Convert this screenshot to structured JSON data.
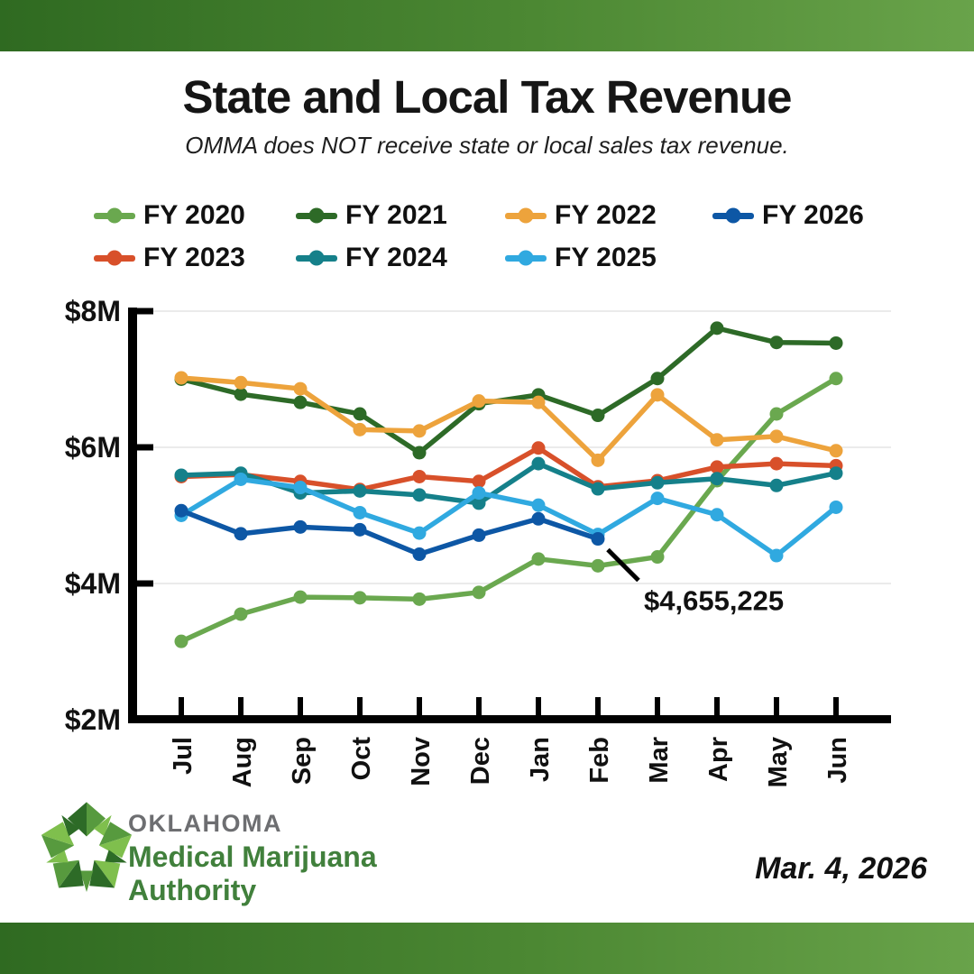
{
  "header": {
    "title": "State and Local Tax Revenue",
    "subtitle": "OMMA does NOT receive state or local sales tax revenue."
  },
  "footer": {
    "org_line1": "OKLAHOMA",
    "org_line2": "Medical Marijuana",
    "org_line3": "Authority",
    "date": "Mar. 4, 2026"
  },
  "colors": {
    "banner_gradient_from": "#2f6a21",
    "banner_gradient_to": "#69a34a",
    "grid_line": "#ebebeb",
    "axis": "#000000",
    "org_gray": "#6d6e71",
    "org_green": "#41803c",
    "logo_greens": [
      "#2d6b27",
      "#579a3e",
      "#7fbf4d"
    ]
  },
  "chart_data": {
    "type": "line",
    "title": "State and Local Tax Revenue",
    "xlabel": "",
    "ylabel": "",
    "unit": "USD millions",
    "categories": [
      "Jul",
      "Aug",
      "Sep",
      "Oct",
      "Nov",
      "Dec",
      "Jan",
      "Feb",
      "Mar",
      "Apr",
      "May",
      "Jun"
    ],
    "y_axis": {
      "tick_labels": [
        "$8M",
        "$6M",
        "$4M",
        "$2M"
      ],
      "tick_values": [
        8,
        6,
        4,
        2
      ],
      "ylim": [
        2,
        8
      ]
    },
    "grid": "horizontal",
    "legend": {
      "position": "top",
      "order": [
        "FY 2020",
        "FY 2021",
        "FY 2022",
        "FY 2026",
        "FY 2023",
        "FY 2024",
        "FY 2025"
      ]
    },
    "series": [
      {
        "name": "FY 2020",
        "color": "#6aa84f",
        "values": [
          3.15,
          3.55,
          3.8,
          3.79,
          3.77,
          3.87,
          4.36,
          4.26,
          4.39,
          5.51,
          6.49,
          7.01
        ]
      },
      {
        "name": "FY 2021",
        "color": "#2d6a27",
        "values": [
          7.0,
          6.78,
          6.66,
          6.49,
          5.92,
          6.64,
          6.77,
          6.47,
          7.01,
          7.75,
          7.54,
          7.53
        ]
      },
      {
        "name": "FY 2022",
        "color": "#eda33c",
        "values": [
          7.02,
          6.95,
          6.86,
          6.26,
          6.24,
          6.68,
          6.66,
          5.81,
          6.77,
          6.11,
          6.16,
          5.95
        ]
      },
      {
        "name": "FY 2023",
        "color": "#d8502a",
        "values": [
          5.57,
          5.6,
          5.5,
          5.38,
          5.57,
          5.5,
          5.99,
          5.42,
          5.51,
          5.71,
          5.76,
          5.73
        ]
      },
      {
        "name": "FY 2024",
        "color": "#15808a",
        "values": [
          5.59,
          5.62,
          5.33,
          5.36,
          5.3,
          5.18,
          5.76,
          5.39,
          5.48,
          5.54,
          5.44,
          5.62
        ]
      },
      {
        "name": "FY 2025",
        "color": "#30a9e0",
        "values": [
          5.0,
          5.53,
          5.41,
          5.04,
          4.74,
          5.33,
          5.15,
          4.72,
          5.25,
          5.01,
          4.41,
          5.12
        ]
      },
      {
        "name": "FY 2026",
        "color": "#0d57a5",
        "values": [
          5.07,
          4.73,
          4.83,
          4.79,
          4.43,
          4.71,
          4.95,
          4.655225
        ]
      }
    ],
    "annotation": {
      "text": "$4,655,225",
      "series": "FY 2026",
      "category": "Feb",
      "value_millions": 4.655225
    }
  }
}
